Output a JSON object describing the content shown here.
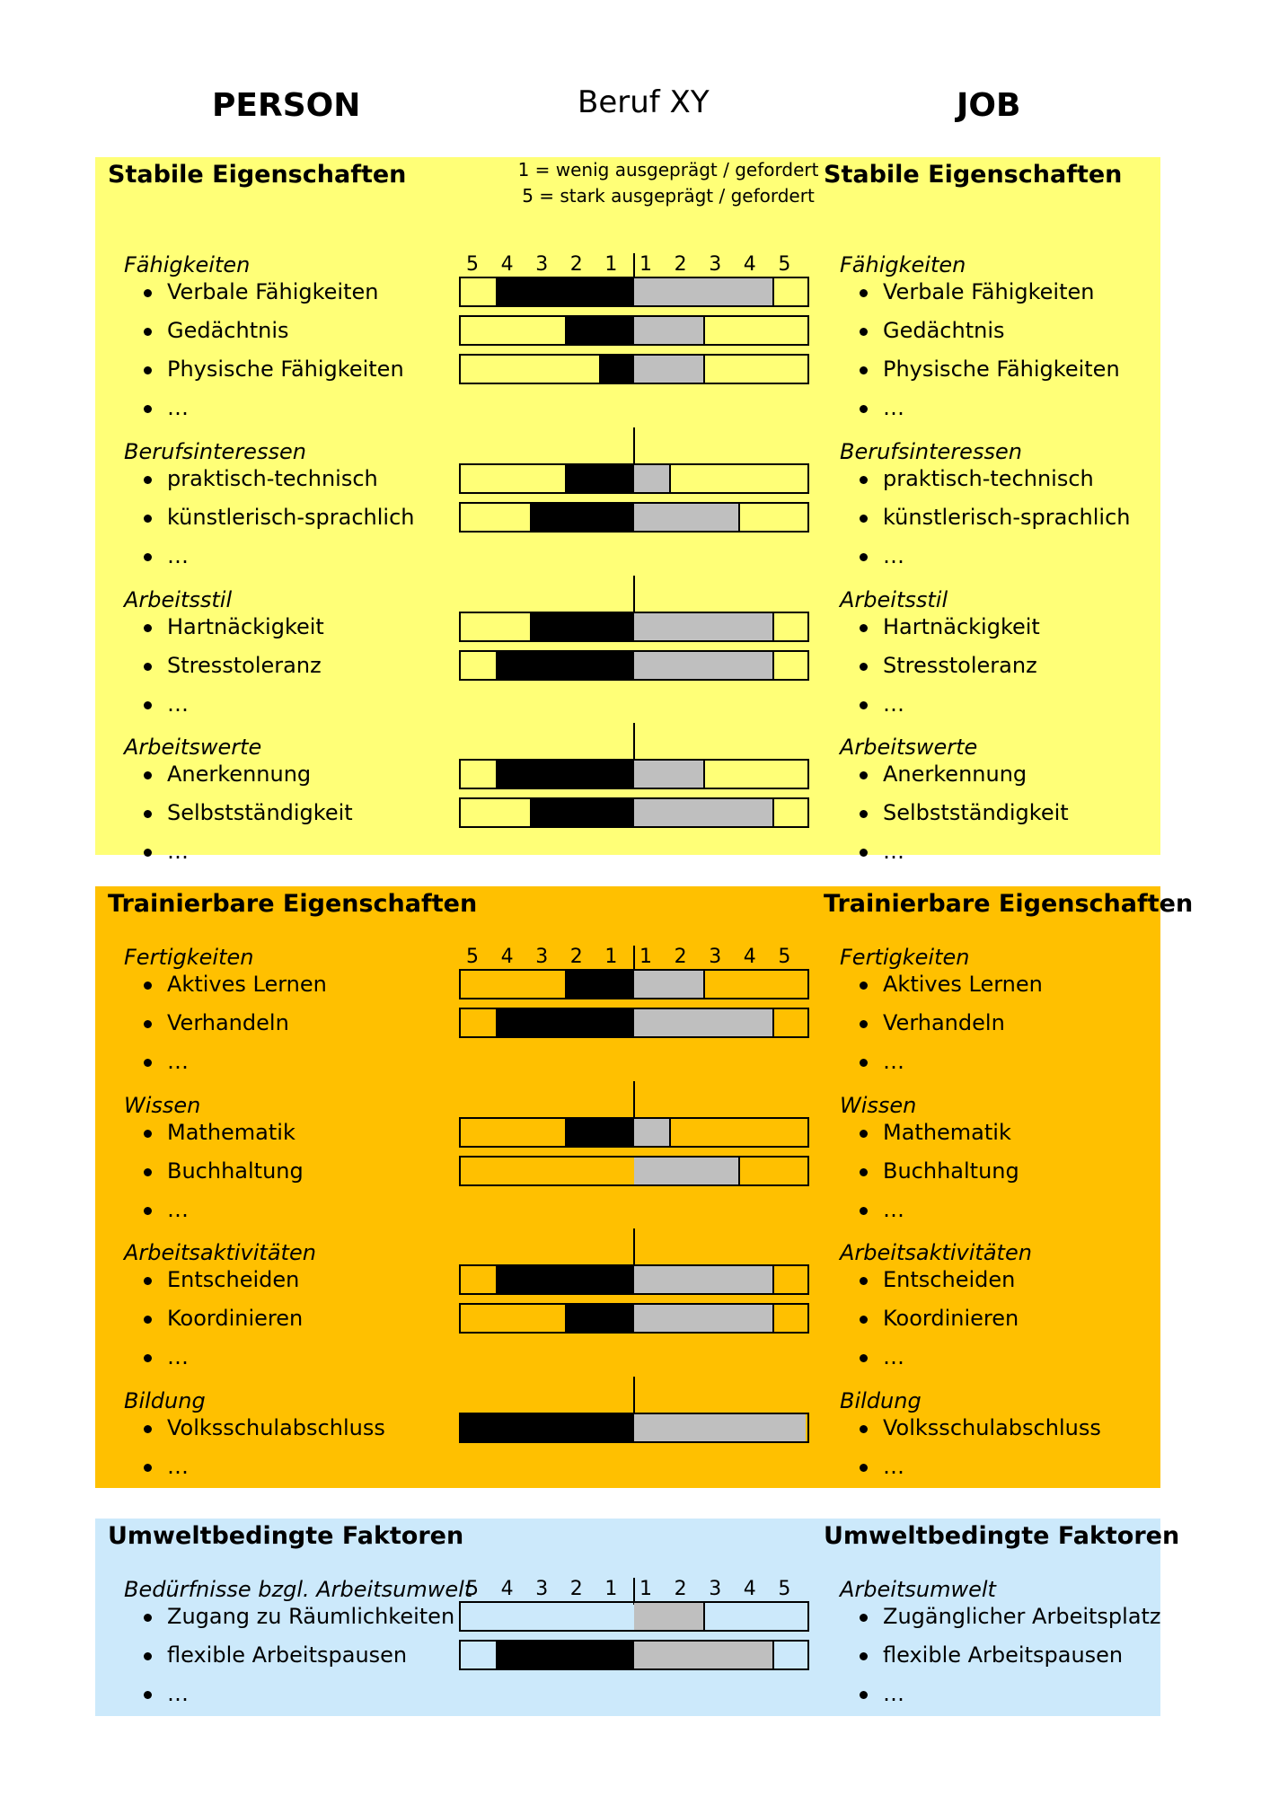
{
  "header": {
    "person": "PERSON",
    "title": "Beruf XY",
    "job": "JOB"
  },
  "legend": {
    "line1": "1 = wenig ausgeprägt / gefordert",
    "line2": "5 = stark ausgeprägt / gefordert"
  },
  "scale_labels": [
    "5",
    "4",
    "3",
    "2",
    "1",
    "1",
    "2",
    "3",
    "4",
    "5"
  ],
  "colors": {
    "stable": "#ffff77",
    "trainable": "#ffc000",
    "environment": "#cce9fb",
    "person_bar": "#000000",
    "job_bar": "#bfbfbf"
  },
  "sections": [
    {
      "title_left": "Stabile Eigenschaften",
      "title_right": "Stabile Eigenschaften",
      "categories": [
        {
          "left": "Fähigkeiten",
          "right": "Fähigkeiten",
          "items": [
            {
              "left": "Verbale Fähigkeiten",
              "right": "Verbale Fähigkeiten",
              "person": 4,
              "job": 4
            },
            {
              "left": "Gedächtnis",
              "right": "Gedächtnis",
              "person": 2,
              "job": 2
            },
            {
              "left": "Physische Fähigkeiten",
              "right": "Physische Fähigkeiten",
              "person": 1,
              "job": 2
            },
            {
              "left": "…",
              "right": "…"
            }
          ]
        },
        {
          "left": "Berufsinteressen",
          "right": "Berufsinteressen",
          "items": [
            {
              "left": "praktisch-technisch",
              "right": "praktisch-technisch",
              "person": 2,
              "job": 1
            },
            {
              "left": "künstlerisch-sprachlich",
              "right": "künstlerisch-sprachlich",
              "person": 3,
              "job": 3
            },
            {
              "left": "…",
              "right": "…"
            }
          ]
        },
        {
          "left": "Arbeitsstil",
          "right": "Arbeitsstil",
          "items": [
            {
              "left": "Hartnäckigkeit",
              "right": "Hartnäckigkeit",
              "person": 3,
              "job": 4
            },
            {
              "left": "Stresstoleranz",
              "right": "Stresstoleranz",
              "person": 4,
              "job": 4
            },
            {
              "left": "…",
              "right": "…"
            }
          ]
        },
        {
          "left": "Arbeitswerte",
          "right": "Arbeitswerte",
          "items": [
            {
              "left": "Anerkennung",
              "right": "Anerkennung",
              "person": 4,
              "job": 2
            },
            {
              "left": "Selbstständigkeit",
              "right": "Selbstständigkeit",
              "person": 3,
              "job": 4
            },
            {
              "left": "…",
              "right": "…"
            }
          ]
        }
      ]
    },
    {
      "title_left": "Trainierbare Eigenschaften",
      "title_right": "Trainierbare Eigenschaften",
      "categories": [
        {
          "left": "Fertigkeiten",
          "right": "Fertigkeiten",
          "items": [
            {
              "left": "Aktives Lernen",
              "right": "Aktives Lernen",
              "person": 2,
              "job": 2
            },
            {
              "left": "Verhandeln",
              "right": "Verhandeln",
              "person": 4,
              "job": 4
            },
            {
              "left": "…",
              "right": "…"
            }
          ]
        },
        {
          "left": "Wissen",
          "right": "Wissen",
          "items": [
            {
              "left": "Mathematik",
              "right": "Mathematik",
              "person": 2,
              "job": 1
            },
            {
              "left": "Buchhaltung",
              "right": "Buchhaltung",
              "person": 0,
              "job": 3
            },
            {
              "left": "…",
              "right": "…"
            }
          ]
        },
        {
          "left": "Arbeitsaktivitäten",
          "right": "Arbeitsaktivitäten",
          "items": [
            {
              "left": "Entscheiden",
              "right": "Entscheiden",
              "person": 4,
              "job": 4
            },
            {
              "left": "Koordinieren",
              "right": "Koordinieren",
              "person": 2,
              "job": 4
            },
            {
              "left": "…",
              "right": "…"
            }
          ]
        },
        {
          "left": "Bildung",
          "right": "Bildung",
          "items": [
            {
              "left": "Volksschulabschluss",
              "right": "Volksschulabschluss",
              "person": 5,
              "job": 5
            },
            {
              "left": "…",
              "right": "…"
            }
          ]
        }
      ]
    },
    {
      "title_left": "Umweltbedingte Faktoren",
      "title_right": "Umweltbedingte Faktoren",
      "categories": [
        {
          "left": "Bedürfnisse bzgl. Arbeitsumwelt",
          "right": "Arbeitsumwelt",
          "items": [
            {
              "left": "Zugang zu Räumlichkeiten",
              "right": "Zugänglicher Arbeitsplatz",
              "person": 0,
              "job": 2
            },
            {
              "left": "flexible Arbeitspausen",
              "right": "flexible Arbeitspausen",
              "person": 4,
              "job": 4
            },
            {
              "left": "…",
              "right": "…"
            }
          ]
        }
      ]
    }
  ]
}
